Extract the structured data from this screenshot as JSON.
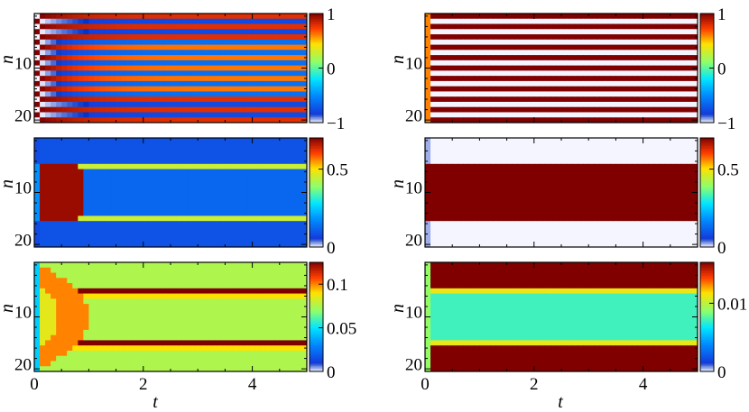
{
  "figure": {
    "x_axis_label": "t",
    "y_axis_label": "n"
  },
  "chart_data": [
    {
      "type": "heatmap",
      "panel": "row1-left",
      "x": [
        0,
        5
      ],
      "xlim": [
        0,
        5
      ],
      "xticks": [
        0,
        2,
        4
      ],
      "y": [
        1,
        21
      ],
      "ylim": [
        0.5,
        21.5
      ],
      "yticks": [
        10,
        20
      ],
      "xlabel": "t",
      "ylabel": "n",
      "colorbar": {
        "range": [
          -1,
          1
        ],
        "ticks": [
          "−1",
          "0",
          "1"
        ],
        "colormap": "jet-white-low"
      },
      "pattern": "alternating rows decaying toward ±0.6",
      "values": [
        [
          1,
          0.8,
          0.75
        ],
        [
          -1,
          -0.8,
          -0.75
        ],
        [
          1,
          0.8,
          0.75
        ],
        [
          -1,
          -0.8,
          -0.75
        ],
        [
          1,
          0.8,
          0.75
        ],
        [
          -1,
          -0.6,
          -0.55
        ],
        [
          1,
          0.4,
          0.35
        ],
        [
          -1,
          -0.6,
          -0.55
        ],
        [
          1,
          0.4,
          0.35
        ],
        [
          -1,
          -0.6,
          -0.55
        ],
        [
          1,
          0.4,
          0.35
        ],
        [
          -1,
          -0.6,
          -0.55
        ],
        [
          1,
          0.4,
          0.35
        ],
        [
          -1,
          -0.6,
          -0.55
        ],
        [
          1,
          0.4,
          0.35
        ],
        [
          -1,
          -0.6,
          -0.55
        ],
        [
          1,
          0.8,
          0.75
        ],
        [
          -1,
          -0.8,
          -0.75
        ],
        [
          1,
          0.8,
          0.75
        ],
        [
          -1,
          -0.8,
          -0.75
        ],
        [
          1,
          0.8,
          0.75
        ]
      ]
    },
    {
      "type": "heatmap",
      "panel": "row1-right",
      "x": [
        0,
        5
      ],
      "xlim": [
        0,
        5
      ],
      "xticks": [
        0,
        2,
        4
      ],
      "y": [
        1,
        21
      ],
      "ylim": [
        0.5,
        21.5
      ],
      "yticks": [
        10,
        20
      ],
      "xlabel": "t",
      "ylabel": "n",
      "colorbar": {
        "range": [
          -1,
          1
        ],
        "ticks": [
          "−1",
          "0",
          "1"
        ],
        "colormap": "jet-white-low"
      },
      "pattern": "alternating rows constant ±1",
      "values": [
        [
          1
        ],
        [
          -1
        ],
        [
          1
        ],
        [
          -1
        ],
        [
          1
        ],
        [
          -1
        ],
        [
          1
        ],
        [
          -1
        ],
        [
          1
        ],
        [
          -1
        ],
        [
          1
        ],
        [
          -1
        ],
        [
          1
        ],
        [
          -1
        ],
        [
          1
        ],
        [
          -1
        ],
        [
          1
        ],
        [
          -1
        ],
        [
          1
        ],
        [
          -1
        ],
        [
          1
        ]
      ]
    },
    {
      "type": "heatmap",
      "panel": "row2-left",
      "x": [
        0,
        5
      ],
      "xlim": [
        0,
        5
      ],
      "xticks": [
        0,
        2,
        4
      ],
      "y": [
        1,
        21
      ],
      "ylim": [
        0.5,
        21.5
      ],
      "yticks": [
        10,
        20
      ],
      "xlabel": "t",
      "ylabel": "n",
      "colorbar": {
        "range": [
          0,
          0.7
        ],
        "ticks": [
          "0",
          "0.5"
        ],
        "colormap": "jet-white-low"
      },
      "initial_block_rows": [
        6,
        16
      ],
      "initial_value": 0.68,
      "late_background": 0.12,
      "late_edge_rows": [
        6,
        16
      ],
      "late_edge_value": 0.45,
      "transition_t": 0.95
    },
    {
      "type": "heatmap",
      "panel": "row2-right",
      "x": [
        0,
        5
      ],
      "xlim": [
        0,
        5
      ],
      "xticks": [
        0,
        2,
        4
      ],
      "y": [
        1,
        21
      ],
      "ylim": [
        0.5,
        21.5
      ],
      "yticks": [
        10,
        20
      ],
      "xlabel": "t",
      "ylabel": "n",
      "colorbar": {
        "range": [
          0,
          0.7
        ],
        "ticks": [
          "0",
          "0.5"
        ],
        "colormap": "jet-white-low"
      },
      "block_rows": [
        6,
        16
      ],
      "block_value": 0.7,
      "background_value": 0.0
    },
    {
      "type": "heatmap",
      "panel": "row3-left",
      "x": [
        0,
        5
      ],
      "xlim": [
        0,
        5
      ],
      "xticks": [
        0,
        2,
        4
      ],
      "y": [
        1,
        21
      ],
      "ylim": [
        0.5,
        21.5
      ],
      "yticks": [
        10,
        20
      ],
      "xlabel": "t",
      "ylabel": "n",
      "colorbar": {
        "range": [
          0,
          0.125
        ],
        "ticks": [
          "0",
          "0.05",
          "0.1"
        ],
        "colormap": "jet-white-low"
      },
      "background_value": 0.075,
      "early_value": 0.085,
      "peak_value": 0.1,
      "late_hot_rows": [
        6,
        16
      ],
      "late_hot_value": 0.125,
      "transition_t": 1.0
    },
    {
      "type": "heatmap",
      "panel": "row3-right",
      "x": [
        0,
        5
      ],
      "xlim": [
        0,
        5
      ],
      "xticks": [
        0,
        2,
        4
      ],
      "y": [
        1,
        21
      ],
      "ylim": [
        0.5,
        21.5
      ],
      "yticks": [
        10,
        20
      ],
      "xlabel": "t",
      "ylabel": "n",
      "colorbar": {
        "range": [
          0,
          0.016
        ],
        "ticks": [
          "0",
          "0.01"
        ],
        "colormap": "jet-white-low"
      },
      "outer_rows": [
        [
          1,
          5
        ],
        [
          17,
          21
        ]
      ],
      "outer_value": 0.016,
      "middle_value": 0.0075,
      "edge_rows": [
        6,
        16
      ],
      "edge_value": 0.011
    }
  ]
}
